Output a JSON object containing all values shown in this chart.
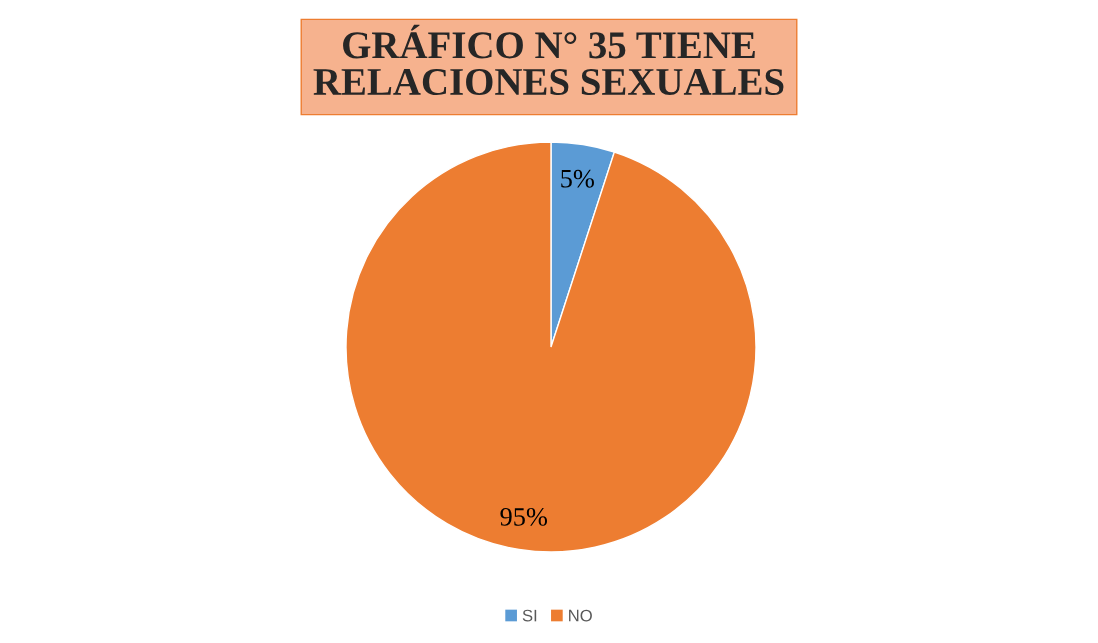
{
  "chart_data": {
    "type": "pie",
    "title": "GRÁFICO N° 35 TIENE RELACIONES SEXUALES",
    "categories": [
      "SI",
      "NO"
    ],
    "values": [
      5,
      95
    ],
    "colors": [
      "#5b9bd5",
      "#ed7d31"
    ],
    "value_labels": [
      "5%",
      "95%"
    ],
    "legend": "bottom"
  }
}
